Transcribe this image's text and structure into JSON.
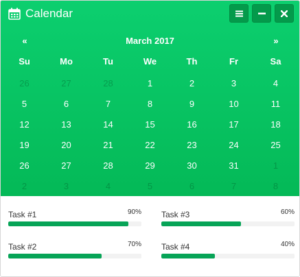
{
  "header": {
    "title": "Calendar",
    "icon": "calendar-icon"
  },
  "toolbar": {
    "menu_icon": "menu-icon",
    "minimize_icon": "minimize-icon",
    "close_icon": "close-icon"
  },
  "calendar": {
    "prev_label": "«",
    "next_label": "»",
    "month_label": "March 2017",
    "days_of_week": [
      "Su",
      "Mo",
      "Tu",
      "We",
      "Th",
      "Fr",
      "Sa"
    ],
    "weeks": [
      [
        {
          "d": "26",
          "m": true
        },
        {
          "d": "27",
          "m": true
        },
        {
          "d": "28",
          "m": true
        },
        {
          "d": "1"
        },
        {
          "d": "2"
        },
        {
          "d": "3"
        },
        {
          "d": "4"
        }
      ],
      [
        {
          "d": "5"
        },
        {
          "d": "6"
        },
        {
          "d": "7"
        },
        {
          "d": "8"
        },
        {
          "d": "9"
        },
        {
          "d": "10"
        },
        {
          "d": "11"
        }
      ],
      [
        {
          "d": "12"
        },
        {
          "d": "13"
        },
        {
          "d": "14"
        },
        {
          "d": "15"
        },
        {
          "d": "16"
        },
        {
          "d": "17"
        },
        {
          "d": "18"
        }
      ],
      [
        {
          "d": "19"
        },
        {
          "d": "20"
        },
        {
          "d": "21"
        },
        {
          "d": "22"
        },
        {
          "d": "23"
        },
        {
          "d": "24"
        },
        {
          "d": "25"
        }
      ],
      [
        {
          "d": "26"
        },
        {
          "d": "27"
        },
        {
          "d": "28"
        },
        {
          "d": "29"
        },
        {
          "d": "30"
        },
        {
          "d": "31"
        },
        {
          "d": "1",
          "m": true
        }
      ],
      [
        {
          "d": "2",
          "m": true
        },
        {
          "d": "3",
          "m": true
        },
        {
          "d": "4",
          "m": true
        },
        {
          "d": "5",
          "m": true
        },
        {
          "d": "6",
          "m": true
        },
        {
          "d": "7",
          "m": true
        },
        {
          "d": "8",
          "m": true
        }
      ]
    ]
  },
  "tasks": [
    {
      "label": "Task #1",
      "percent_label": "90%",
      "progress": 0.9
    },
    {
      "label": "Task #3",
      "percent_label": "60%",
      "progress": 0.6
    },
    {
      "label": "Task #2",
      "percent_label": "70%",
      "progress": 0.7
    },
    {
      "label": "Task #4",
      "percent_label": "40%",
      "progress": 0.4
    }
  ],
  "colors": {
    "accent": "#04b957",
    "bar": "#07a457",
    "button": "#049a4b"
  }
}
